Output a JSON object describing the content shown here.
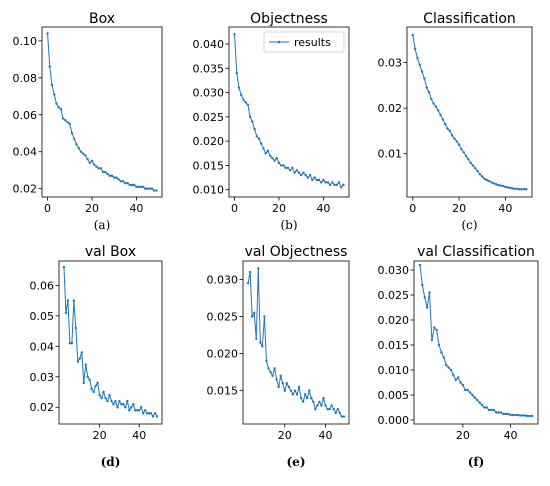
{
  "chart_data": [
    {
      "type": "line",
      "title": "Box",
      "caption": "(a)",
      "x_start": 0,
      "xlim": [
        -2.5,
        51.5
      ],
      "ylim": [
        0.0155,
        0.1075
      ],
      "xticks": [
        0,
        20,
        40
      ],
      "yticks": [
        0.02,
        0.04,
        0.06,
        0.08,
        0.1
      ],
      "ytick_labels": [
        "0.02",
        "0.04",
        "0.06",
        "0.08",
        "0.10"
      ],
      "color": "#1f77b4",
      "legend": null,
      "values": [
        0.104,
        0.086,
        0.076,
        0.071,
        0.066,
        0.064,
        0.063,
        0.058,
        0.057,
        0.056,
        0.055,
        0.05,
        0.047,
        0.044,
        0.042,
        0.04,
        0.039,
        0.038,
        0.036,
        0.034,
        0.035,
        0.033,
        0.032,
        0.031,
        0.031,
        0.029,
        0.029,
        0.028,
        0.027,
        0.027,
        0.026,
        0.026,
        0.025,
        0.024,
        0.024,
        0.023,
        0.023,
        0.022,
        0.022,
        0.022,
        0.021,
        0.021,
        0.021,
        0.021,
        0.02,
        0.02,
        0.02,
        0.02,
        0.019,
        0.019
      ]
    },
    {
      "type": "line",
      "title": "Objectness",
      "caption": "(b)",
      "x_start": 0,
      "xlim": [
        -2.5,
        51.5
      ],
      "ylim": [
        0.0085,
        0.0435
      ],
      "xticks": [
        0,
        20,
        40
      ],
      "yticks": [
        0.01,
        0.015,
        0.02,
        0.025,
        0.03,
        0.035,
        0.04
      ],
      "ytick_labels": [
        "0.010",
        "0.015",
        "0.020",
        "0.025",
        "0.030",
        "0.035",
        "0.040"
      ],
      "color": "#1f77b4",
      "legend": {
        "position": "top-right",
        "entries": [
          "results"
        ]
      },
      "values": [
        0.042,
        0.034,
        0.031,
        0.0295,
        0.0285,
        0.028,
        0.0275,
        0.025,
        0.024,
        0.0225,
        0.021,
        0.0205,
        0.0195,
        0.0185,
        0.0175,
        0.018,
        0.017,
        0.0165,
        0.016,
        0.0165,
        0.0155,
        0.015,
        0.015,
        0.0145,
        0.0145,
        0.014,
        0.0145,
        0.0135,
        0.014,
        0.0135,
        0.013,
        0.0135,
        0.013,
        0.0125,
        0.013,
        0.012,
        0.0125,
        0.012,
        0.012,
        0.0115,
        0.012,
        0.0115,
        0.0115,
        0.011,
        0.0115,
        0.011,
        0.011,
        0.0115,
        0.0105,
        0.011
      ]
    },
    {
      "type": "line",
      "title": "Classification",
      "caption": "(c)",
      "x_start": 0,
      "xlim": [
        -2.5,
        51.5
      ],
      "ylim": [
        0.0005,
        0.0378
      ],
      "xticks": [
        0,
        20,
        40
      ],
      "yticks": [
        0.01,
        0.02,
        0.03
      ],
      "ytick_labels": [
        "0.01",
        "0.02",
        "0.03"
      ],
      "color": "#1f77b4",
      "legend": null,
      "values": [
        0.036,
        0.033,
        0.031,
        0.0295,
        0.028,
        0.0265,
        0.0245,
        0.0235,
        0.022,
        0.021,
        0.0203,
        0.0195,
        0.0185,
        0.0175,
        0.0165,
        0.0155,
        0.015,
        0.014,
        0.0133,
        0.0127,
        0.012,
        0.011,
        0.0103,
        0.0095,
        0.0088,
        0.008,
        0.0074,
        0.0068,
        0.0062,
        0.0055,
        0.005,
        0.0045,
        0.0042,
        0.004,
        0.0037,
        0.0035,
        0.0033,
        0.0031,
        0.003,
        0.0029,
        0.0027,
        0.0026,
        0.0025,
        0.0024,
        0.0023,
        0.0023,
        0.0022,
        0.0022,
        0.0022,
        0.0022
      ]
    },
    {
      "type": "line",
      "title": "val Box",
      "caption": "(d)",
      "x_start": 2,
      "xlim": [
        -0.5,
        51.5
      ],
      "ylim": [
        0.0145,
        0.068
      ],
      "xticks": [
        20,
        40
      ],
      "yticks": [
        0.02,
        0.03,
        0.04,
        0.05,
        0.06
      ],
      "ytick_labels": [
        "0.02",
        "0.03",
        "0.04",
        "0.05",
        "0.06"
      ],
      "color": "#1f77b4",
      "legend": null,
      "values": [
        0.066,
        0.051,
        0.055,
        0.041,
        0.041,
        0.055,
        0.046,
        0.035,
        0.036,
        0.038,
        0.028,
        0.034,
        0.03,
        0.029,
        0.026,
        0.025,
        0.027,
        0.028,
        0.024,
        0.023,
        0.025,
        0.023,
        0.022,
        0.024,
        0.022,
        0.021,
        0.022,
        0.02,
        0.022,
        0.021,
        0.021,
        0.02,
        0.022,
        0.019,
        0.02,
        0.021,
        0.019,
        0.019,
        0.019,
        0.02,
        0.018,
        0.019,
        0.018,
        0.018,
        0.018,
        0.017,
        0.018,
        0.017
      ]
    },
    {
      "type": "line",
      "title": "val Objectness",
      "caption": "(e)",
      "x_start": 2,
      "xlim": [
        -0.5,
        51.5
      ],
      "ylim": [
        0.0105,
        0.0325
      ],
      "xticks": [
        20,
        40
      ],
      "yticks": [
        0.015,
        0.02,
        0.025,
        0.03
      ],
      "ytick_labels": [
        "0.015",
        "0.020",
        "0.025",
        "0.030"
      ],
      "color": "#1f77b4",
      "legend": null,
      "values": [
        0.0295,
        0.031,
        0.025,
        0.0255,
        0.022,
        0.0315,
        0.0215,
        0.021,
        0.025,
        0.019,
        0.018,
        0.0175,
        0.017,
        0.018,
        0.0165,
        0.0155,
        0.017,
        0.016,
        0.015,
        0.016,
        0.0155,
        0.015,
        0.0145,
        0.015,
        0.0145,
        0.0155,
        0.014,
        0.0135,
        0.0145,
        0.014,
        0.015,
        0.014,
        0.0135,
        0.0125,
        0.013,
        0.0135,
        0.013,
        0.014,
        0.013,
        0.0125,
        0.0125,
        0.013,
        0.0125,
        0.012,
        0.0125,
        0.012,
        0.0115,
        0.0115
      ]
    },
    {
      "type": "line",
      "title": "val Classification",
      "caption": "(f)",
      "x_start": 2,
      "xlim": [
        -0.5,
        51.5
      ],
      "ylim": [
        -0.0008,
        0.0318
      ],
      "xticks": [
        20,
        40
      ],
      "yticks": [
        0,
        0.005,
        0.01,
        0.015,
        0.02,
        0.025,
        0.03
      ],
      "ytick_labels": [
        "0.000",
        "0.005",
        "0.010",
        "0.015",
        "0.020",
        "0.025",
        "0.030"
      ],
      "color": "#1f77b4",
      "legend": null,
      "values": [
        0.031,
        0.027,
        0.0245,
        0.0225,
        0.0255,
        0.016,
        0.0185,
        0.018,
        0.015,
        0.0135,
        0.0125,
        0.011,
        0.0105,
        0.01,
        0.009,
        0.008,
        0.0085,
        0.0075,
        0.007,
        0.006,
        0.006,
        0.0055,
        0.005,
        0.0045,
        0.004,
        0.0035,
        0.003,
        0.0025,
        0.0025,
        0.002,
        0.002,
        0.002,
        0.0015,
        0.0015,
        0.0015,
        0.0012,
        0.0012,
        0.0012,
        0.001,
        0.001,
        0.001,
        0.001,
        0.0009,
        0.0009,
        0.0009,
        0.0008,
        0.0008,
        0.0008
      ]
    }
  ]
}
